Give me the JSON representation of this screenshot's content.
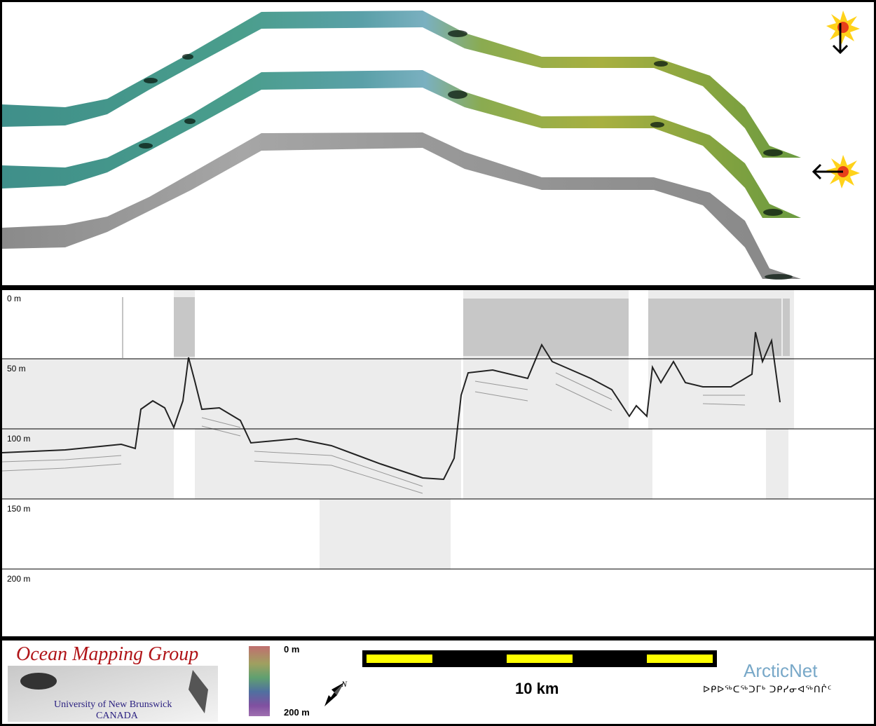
{
  "depth_axis": {
    "labels": [
      "0 m",
      "50 m",
      "100 m",
      "150 m",
      "200 m"
    ]
  },
  "colorbar": {
    "top_label": "0 m",
    "bottom_label": "200 m"
  },
  "scale_bar": {
    "label": "10 km",
    "colors": [
      "#ffff00",
      "#000000"
    ]
  },
  "logos": {
    "omg_title": "Ocean Mapping Group",
    "omg_university": "University of New Brunswick",
    "omg_country": "CANADA",
    "arcticnet": "ArcticNet",
    "arcticnet_inuktitut": "ᐅᑭᐅᖅᑕᖅᑐᒥᒃ ᑐᑭᓯᓂᐊᖅᑎᒌᑦ"
  },
  "north_arrow": {
    "label": "N"
  },
  "colors": {
    "sun_fill": "#ffd21a",
    "sun_core": "#e8401a",
    "omg_red": "#b01418",
    "arcticnet_blue": "#78a8c8"
  },
  "icons": [
    "sun-illumination-icon",
    "arrow-down-icon",
    "arrow-left-icon",
    "north-arrow-icon"
  ]
}
